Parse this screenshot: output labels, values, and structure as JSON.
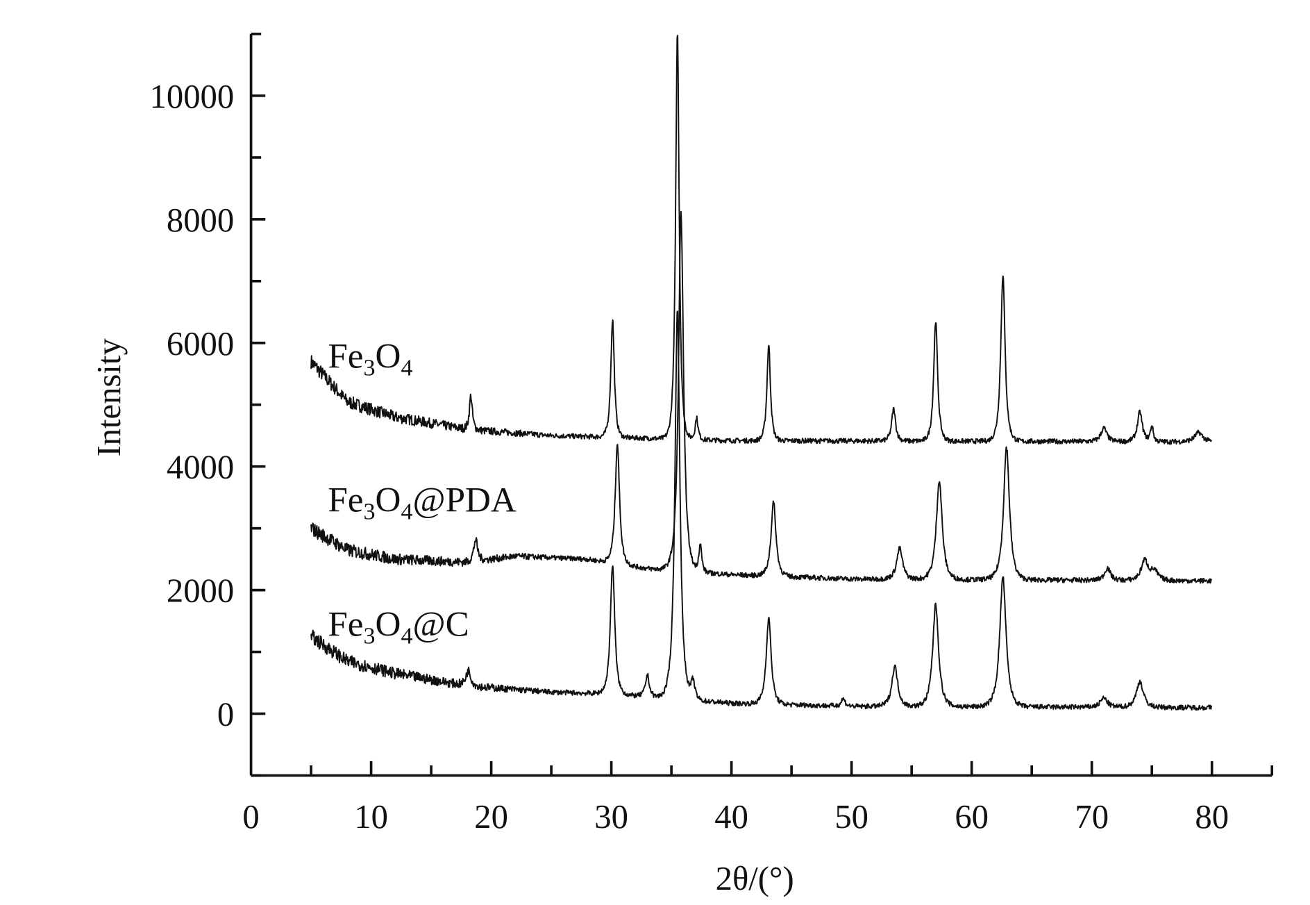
{
  "chart_data": {
    "type": "line",
    "title": "",
    "xlabel": "2θ/(°)",
    "ylabel": "Intensity",
    "xlim": [
      0,
      85
    ],
    "ylim": [
      -1000,
      11000
    ],
    "xticks": [
      "0",
      "10",
      "20",
      "30",
      "40",
      "50",
      "60",
      "70",
      "80"
    ],
    "xtick_values": [
      0,
      10,
      20,
      30,
      40,
      50,
      60,
      70,
      80
    ],
    "yticks": [
      "0",
      "2000",
      "4000",
      "6000",
      "8000",
      "10000"
    ],
    "ytick_values": [
      0,
      2000,
      4000,
      6000,
      8000,
      10000
    ],
    "grid": false,
    "line_color": "#111111",
    "series": [
      {
        "name": "Fe3O4",
        "label_main": "Fe",
        "label_sub1": "3",
        "label_mid": "O",
        "label_sub2": "4",
        "label_suffix": "",
        "x_range": [
          5,
          80
        ],
        "baseline": [
          [
            5,
            5700
          ],
          [
            8,
            5050
          ],
          [
            12,
            4800
          ],
          [
            18,
            4600
          ],
          [
            25,
            4500
          ],
          [
            40,
            4420
          ],
          [
            80,
            4400
          ]
        ],
        "peaks": [
          [
            18.3,
            550,
            0.15
          ],
          [
            30.1,
            1900,
            0.18
          ],
          [
            35.5,
            6600,
            0.18
          ],
          [
            37.1,
            350,
            0.15
          ],
          [
            43.1,
            1550,
            0.18
          ],
          [
            53.5,
            520,
            0.2
          ],
          [
            57.0,
            1950,
            0.2
          ],
          [
            62.6,
            2700,
            0.22
          ],
          [
            71.0,
            220,
            0.3
          ],
          [
            74.0,
            480,
            0.25
          ],
          [
            75.0,
            250,
            0.15
          ],
          [
            78.9,
            150,
            0.4
          ]
        ]
      },
      {
        "name": "Fe3O4@PDA",
        "label_main": "Fe",
        "label_sub1": "3",
        "label_mid": "O",
        "label_sub2": "4",
        "label_suffix": "@PDA",
        "x_range": [
          5,
          80
        ],
        "baseline": [
          [
            5,
            3000
          ],
          [
            8,
            2650
          ],
          [
            12,
            2500
          ],
          [
            18,
            2450
          ],
          [
            22,
            2550
          ],
          [
            28,
            2500
          ],
          [
            33,
            2350
          ],
          [
            40,
            2250
          ],
          [
            50,
            2180
          ],
          [
            80,
            2150
          ]
        ],
        "peaks": [
          [
            18.7,
            350,
            0.2
          ],
          [
            30.5,
            1950,
            0.22
          ],
          [
            35.8,
            5800,
            0.25
          ],
          [
            37.4,
            450,
            0.15
          ],
          [
            43.5,
            1200,
            0.25
          ],
          [
            54.0,
            500,
            0.3
          ],
          [
            57.3,
            1600,
            0.3
          ],
          [
            62.9,
            2150,
            0.3
          ],
          [
            71.3,
            200,
            0.3
          ],
          [
            74.4,
            320,
            0.35
          ],
          [
            75.2,
            150,
            0.4
          ]
        ]
      },
      {
        "name": "Fe3O4@C",
        "label_main": "Fe",
        "label_sub1": "3",
        "label_mid": "O",
        "label_sub2": "4",
        "label_suffix": "@C",
        "x_range": [
          5,
          80
        ],
        "baseline": [
          [
            5,
            1250
          ],
          [
            8,
            850
          ],
          [
            12,
            650
          ],
          [
            18,
            450
          ],
          [
            25,
            350
          ],
          [
            30,
            320
          ],
          [
            40,
            170
          ],
          [
            50,
            120
          ],
          [
            80,
            100
          ]
        ],
        "peaks": [
          [
            18.1,
            250,
            0.25
          ],
          [
            30.1,
            2100,
            0.22
          ],
          [
            33.0,
            350,
            0.2
          ],
          [
            35.5,
            6300,
            0.25
          ],
          [
            36.8,
            300,
            0.2
          ],
          [
            43.1,
            1400,
            0.25
          ],
          [
            49.3,
            120,
            0.2
          ],
          [
            53.6,
            650,
            0.3
          ],
          [
            57.0,
            1650,
            0.3
          ],
          [
            62.6,
            2100,
            0.32
          ],
          [
            71.0,
            150,
            0.35
          ],
          [
            74.0,
            420,
            0.35
          ]
        ]
      }
    ]
  }
}
